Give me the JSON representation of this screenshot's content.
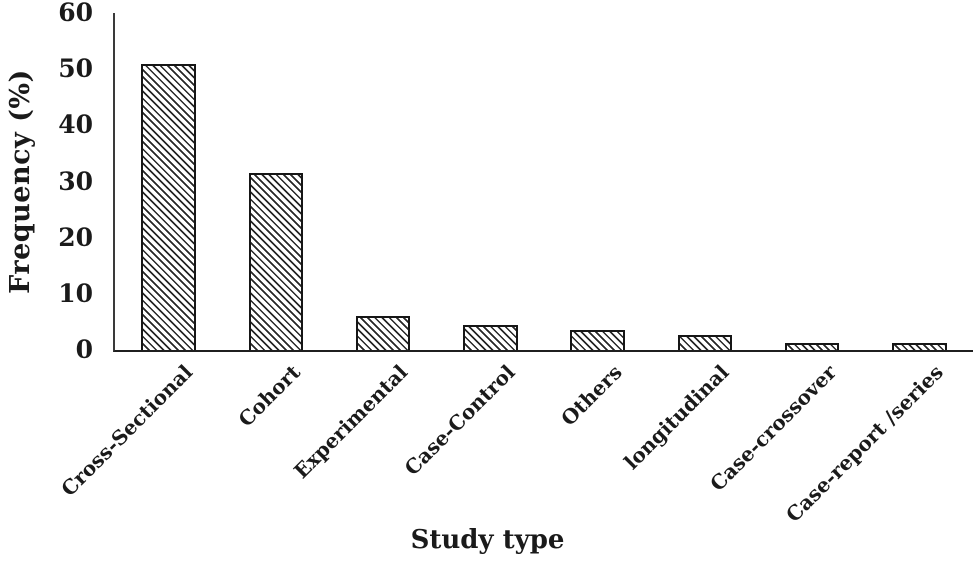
{
  "figure": {
    "background_color": "#ffffff",
    "ink_color": "#1a1a1a"
  },
  "chart_data": {
    "type": "bar",
    "xlabel": "Study type",
    "ylabel": "Frequency (%)",
    "categories": [
      "Cross-Sectional",
      "Cohort",
      "Experimental",
      "Case-Control",
      "Others",
      "longitudinal",
      "Case-crossover",
      "Case-report /series"
    ],
    "values": [
      51,
      31.5,
      6,
      4.5,
      3.5,
      2.7,
      1.2,
      1.2
    ],
    "ylim": [
      0,
      60
    ],
    "yticks": [
      0,
      10,
      20,
      30,
      40,
      50,
      60
    ],
    "grid": false,
    "legend": false,
    "bar_fill": "diagonal-hatch",
    "bar_edge_color": "#161616",
    "x_tick_label_rotation_deg": 45
  }
}
